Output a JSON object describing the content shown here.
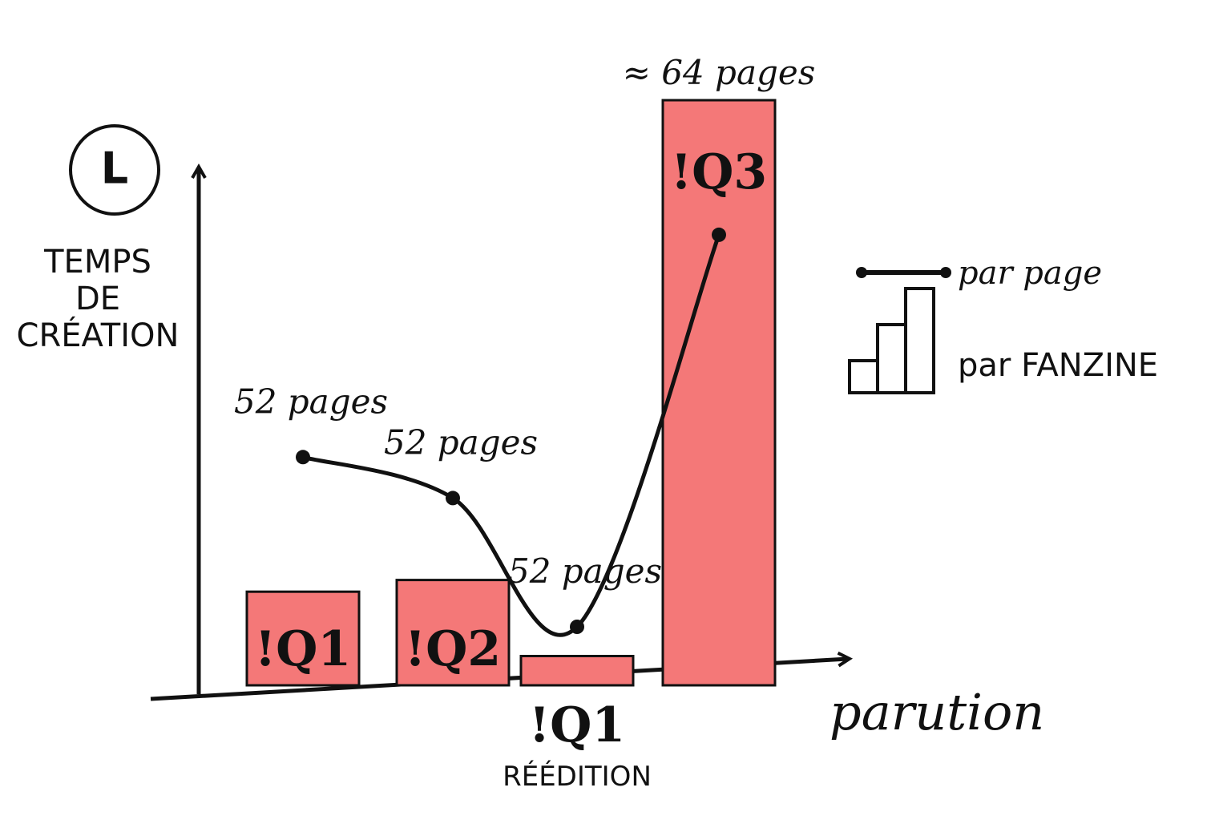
{
  "chart_data": {
    "type": "bar",
    "ylabel": [
      "TEMPS",
      "DE",
      "CRÉATION"
    ],
    "xlabel": "parution",
    "icon": "L",
    "categories": [
      "!Q1",
      "!Q2",
      "!Q1",
      "!Q3"
    ],
    "category_notes": [
      null,
      null,
      "RÉÉDITION",
      null
    ],
    "ylim": [
      0,
      100
    ],
    "series": [
      {
        "name": "par FANZINE",
        "type": "bar",
        "color": "#f47878",
        "values": [
          16,
          18,
          5,
          100
        ],
        "annotations": [
          null,
          null,
          null,
          "≈ 64 pages"
        ]
      },
      {
        "name": "par page",
        "type": "line",
        "color": "#111111",
        "values": [
          39,
          32,
          10,
          77
        ],
        "annotations": [
          "52 pages",
          "52 pages",
          "52 pages",
          null
        ]
      }
    ],
    "legend": "right"
  }
}
